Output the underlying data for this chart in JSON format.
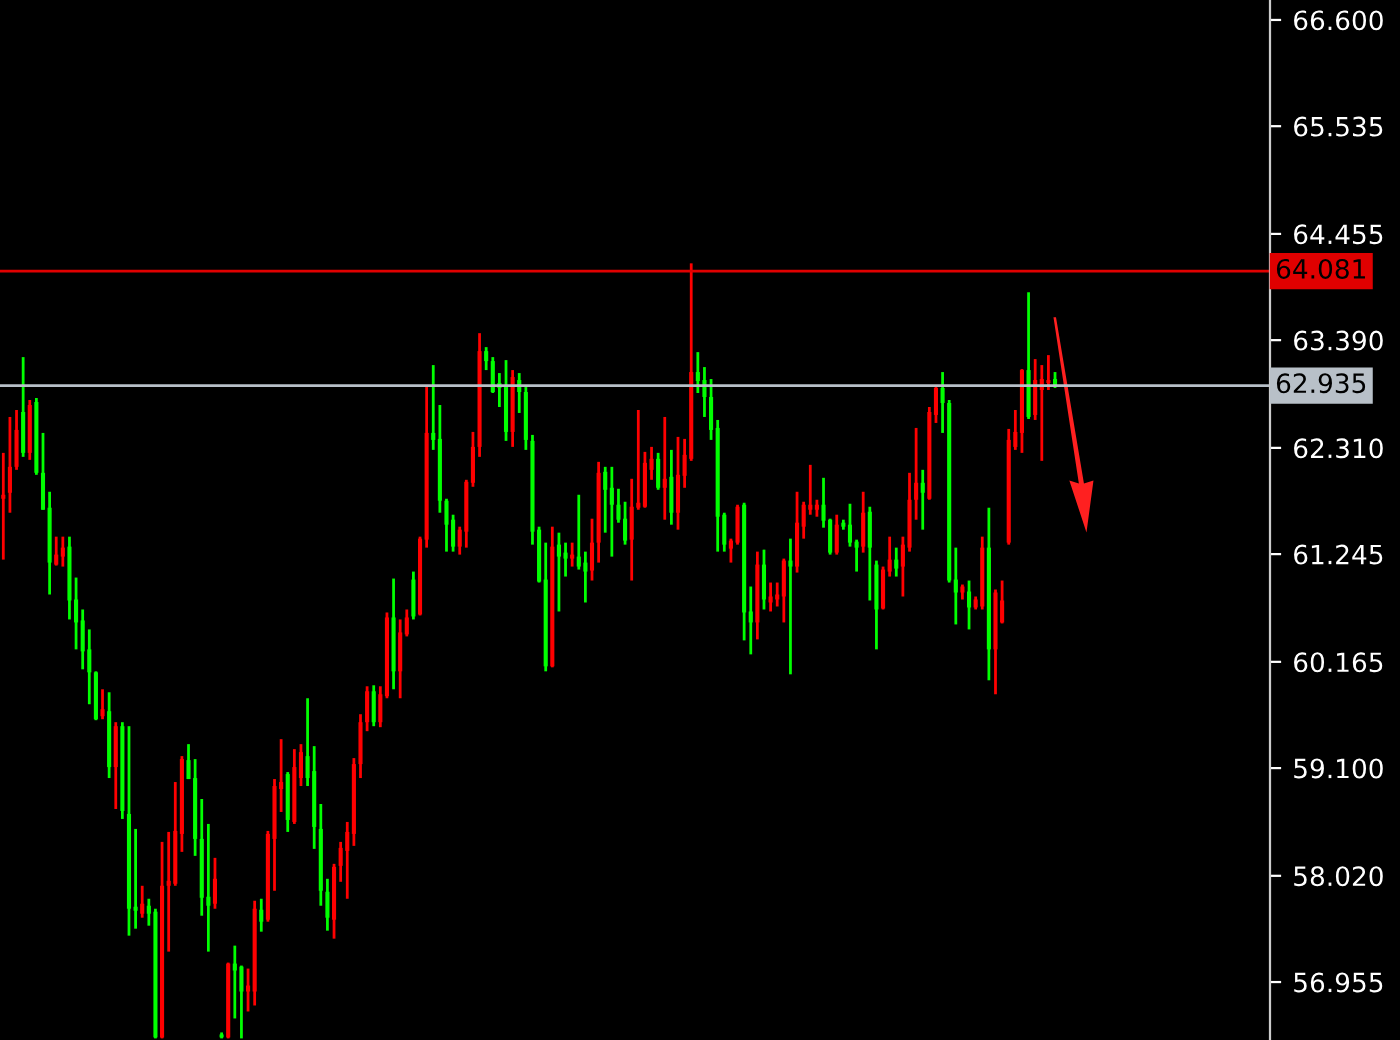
{
  "chart_data": {
    "type": "candlestick",
    "categories": [
      null,
      null,
      null,
      null,
      null,
      null,
      null,
      null,
      null,
      null,
      null,
      null,
      null,
      null,
      null,
      null,
      null,
      null,
      null,
      null,
      null,
      null,
      null,
      null,
      null,
      null,
      null,
      null,
      null,
      null,
      null,
      null,
      null,
      null,
      null,
      null,
      null,
      null,
      null,
      null,
      null,
      null,
      null,
      null,
      null,
      null,
      null,
      null,
      null,
      null,
      null,
      null,
      null,
      null,
      null,
      null,
      null,
      null,
      null,
      null,
      null,
      null,
      null,
      null,
      null,
      null,
      null,
      null,
      null,
      null,
      null,
      null,
      null,
      null,
      null,
      null,
      null,
      null,
      null,
      null,
      null,
      null,
      null,
      null,
      null,
      null,
      null,
      null,
      null,
      null,
      null,
      null,
      null,
      null,
      null,
      null,
      null,
      null,
      null,
      null,
      null,
      null,
      null,
      null,
      null,
      null,
      null,
      null,
      null,
      null,
      null,
      null,
      null,
      null,
      null,
      null,
      null,
      null,
      null,
      null,
      null,
      null,
      null,
      null,
      null,
      null,
      null,
      null,
      null,
      null,
      null,
      null,
      null,
      null,
      null,
      null,
      null,
      null,
      null,
      null,
      null,
      null,
      null,
      null,
      null,
      null,
      null,
      null,
      null,
      null,
      null,
      null,
      null,
      null,
      null,
      null,
      null,
      null,
      null,
      null,
      null,
      null,
      null,
      null,
      null,
      null,
      null,
      null,
      null,
      null,
      null,
      null,
      null,
      null,
      null,
      null,
      null,
      null,
      null,
      null,
      null,
      null,
      null,
      null,
      null,
      null,
      null,
      null,
      null,
      null,
      null,
      null
    ],
    "ohlc": [
      [
        61.8,
        62.26,
        61.19,
        61.84
      ],
      [
        61.86,
        62.62,
        61.66,
        62.12
      ],
      [
        62.12,
        62.69,
        62.09,
        62.49
      ],
      [
        62.67,
        63.22,
        62.22,
        62.26
      ],
      [
        62.26,
        62.79,
        62.19,
        62.74
      ],
      [
        62.77,
        62.81,
        62.04,
        62.06
      ],
      [
        62.06,
        62.46,
        61.69,
        61.69
      ],
      [
        61.71,
        61.87,
        60.84,
        61.16
      ],
      [
        61.14,
        61.42,
        61.13,
        61.24
      ],
      [
        61.22,
        61.42,
        61.12,
        61.31
      ],
      [
        61.32,
        61.42,
        60.59,
        60.78
      ],
      [
        60.79,
        61.01,
        60.29,
        60.56
      ],
      [
        60.58,
        60.69,
        60.09,
        60.27
      ],
      [
        60.29,
        60.49,
        59.74,
        60.06
      ],
      [
        60.06,
        60.07,
        59.58,
        59.59
      ],
      [
        59.62,
        59.89,
        59.59,
        59.69
      ],
      [
        59.67,
        59.86,
        59.0,
        59.11
      ],
      [
        59.11,
        59.56,
        58.69,
        59.52
      ],
      [
        59.52,
        59.56,
        58.59,
        58.67
      ],
      [
        58.64,
        59.52,
        57.42,
        57.69
      ],
      [
        57.71,
        58.49,
        57.49,
        57.67
      ],
      [
        57.64,
        57.92,
        57.6,
        57.74
      ],
      [
        57.72,
        57.79,
        57.52,
        57.64
      ],
      [
        57.66,
        57.69,
        56.39,
        56.4
      ],
      [
        56.4,
        58.36,
        56.39,
        57.92
      ],
      [
        57.92,
        58.46,
        57.26,
        57.97
      ],
      [
        57.94,
        58.96,
        57.92,
        58.47
      ],
      [
        58.44,
        59.22,
        58.26,
        59.19
      ],
      [
        59.18,
        59.34,
        58.99,
        58.99
      ],
      [
        59.0,
        59.19,
        58.22,
        58.39
      ],
      [
        58.39,
        58.79,
        57.62,
        57.8
      ],
      [
        57.81,
        58.54,
        57.26,
        57.72
      ],
      [
        57.74,
        58.2,
        57.69,
        57.99
      ],
      [
        56.43,
        56.45,
        56.39,
        56.4
      ],
      [
        56.4,
        57.15,
        56.39,
        57.14
      ],
      [
        57.14,
        57.32,
        56.59,
        57.07
      ],
      [
        57.11,
        57.12,
        56.39,
        56.86
      ],
      [
        56.86,
        57.09,
        56.66,
        56.92
      ],
      [
        56.86,
        57.77,
        56.72,
        57.69
      ],
      [
        57.68,
        57.79,
        57.46,
        57.56
      ],
      [
        57.58,
        58.47,
        57.56,
        58.44
      ],
      [
        58.39,
        58.99,
        57.87,
        58.92
      ],
      [
        58.89,
        59.39,
        58.66,
        58.96
      ],
      [
        59.04,
        59.06,
        58.46,
        58.58
      ],
      [
        58.56,
        59.29,
        58.54,
        59.11
      ],
      [
        59.0,
        59.34,
        58.92,
        59.26
      ],
      [
        59.22,
        59.8,
        58.92,
        59.0
      ],
      [
        59.07,
        59.32,
        58.29,
        58.51
      ],
      [
        58.49,
        58.74,
        57.72,
        57.87
      ],
      [
        57.86,
        57.99,
        57.47,
        57.6
      ],
      [
        57.58,
        58.14,
        57.39,
        58.11
      ],
      [
        58.12,
        58.36,
        57.96,
        58.3
      ],
      [
        58.27,
        58.56,
        57.79,
        58.46
      ],
      [
        58.44,
        59.2,
        58.32,
        59.14
      ],
      [
        59.14,
        59.64,
        59.0,
        59.56
      ],
      [
        59.56,
        59.92,
        59.47,
        59.87
      ],
      [
        59.87,
        59.93,
        59.52,
        59.56
      ],
      [
        59.56,
        59.92,
        59.51,
        59.84
      ],
      [
        59.82,
        60.66,
        59.8,
        60.61
      ],
      [
        60.61,
        61.0,
        59.89,
        60.07
      ],
      [
        60.07,
        60.59,
        59.8,
        60.46
      ],
      [
        60.44,
        60.69,
        60.42,
        60.61
      ],
      [
        60.99,
        61.07,
        60.59,
        60.62
      ],
      [
        60.64,
        61.42,
        60.63,
        61.4
      ],
      [
        61.39,
        62.92,
        61.31,
        62.46
      ],
      [
        62.46,
        63.14,
        62.29,
        62.39
      ],
      [
        62.4,
        62.74,
        61.66,
        61.78
      ],
      [
        61.78,
        61.8,
        61.27,
        61.54
      ],
      [
        61.59,
        61.64,
        61.27,
        61.32
      ],
      [
        61.32,
        61.52,
        61.24,
        61.49
      ],
      [
        61.47,
        61.99,
        61.31,
        61.97
      ],
      [
        61.96,
        62.47,
        61.92,
        62.32
      ],
      [
        62.32,
        63.46,
        62.22,
        63.28
      ],
      [
        63.28,
        63.32,
        63.09,
        63.18
      ],
      [
        63.18,
        63.22,
        62.86,
        62.87
      ],
      [
        62.96,
        63.06,
        62.72,
        62.91
      ],
      [
        62.92,
        63.19,
        62.38,
        62.47
      ],
      [
        62.47,
        63.09,
        62.32,
        63.02
      ],
      [
        62.99,
        63.06,
        62.66,
        62.87
      ],
      [
        62.87,
        62.92,
        62.29,
        62.39
      ],
      [
        62.38,
        62.44,
        61.34,
        61.47
      ],
      [
        61.49,
        61.52,
        60.96,
        60.97
      ],
      [
        60.99,
        61.36,
        60.07,
        60.12
      ],
      [
        60.12,
        61.52,
        60.11,
        61.32
      ],
      [
        61.34,
        61.46,
        60.67,
        61.22
      ],
      [
        61.26,
        61.36,
        61.02,
        61.2
      ],
      [
        61.2,
        61.36,
        61.12,
        61.24
      ],
      [
        61.22,
        61.84,
        61.09,
        61.12
      ],
      [
        61.16,
        61.27,
        60.76,
        61.07
      ],
      [
        61.08,
        61.6,
        60.98,
        61.36
      ],
      [
        61.36,
        62.17,
        61.16,
        62.06
      ],
      [
        62.07,
        62.12,
        61.46,
        61.89
      ],
      [
        61.91,
        62.12,
        61.22,
        61.74
      ],
      [
        61.74,
        61.9,
        61.56,
        61.59
      ],
      [
        61.6,
        61.77,
        61.34,
        61.38
      ],
      [
        61.39,
        62.0,
        60.98,
        61.72
      ],
      [
        61.71,
        62.69,
        61.69,
        61.76
      ],
      [
        61.72,
        62.27,
        61.71,
        62.16
      ],
      [
        62.09,
        62.32,
        61.99,
        62.2
      ],
      [
        62.2,
        62.26,
        61.89,
        61.91
      ],
      [
        61.91,
        62.62,
        61.59,
        62.0
      ],
      [
        62.02,
        62.29,
        61.54,
        61.66
      ],
      [
        61.66,
        62.42,
        61.49,
        62.04
      ],
      [
        62.03,
        62.4,
        61.91,
        62.24
      ],
      [
        62.2,
        64.16,
        62.18,
        63.07
      ],
      [
        63.07,
        63.27,
        62.86,
        62.98
      ],
      [
        62.99,
        63.12,
        62.62,
        62.82
      ],
      [
        62.82,
        63.0,
        62.39,
        62.49
      ],
      [
        62.51,
        62.59,
        61.27,
        61.62
      ],
      [
        61.64,
        61.66,
        61.27,
        61.34
      ],
      [
        61.3,
        61.4,
        61.16,
        61.38
      ],
      [
        61.36,
        61.74,
        61.34,
        61.72
      ],
      [
        61.74,
        61.76,
        60.38,
        60.66
      ],
      [
        60.67,
        60.92,
        60.24,
        60.56
      ],
      [
        60.56,
        61.27,
        60.39,
        61.14
      ],
      [
        61.14,
        61.29,
        60.69,
        60.79
      ],
      [
        60.76,
        60.96,
        60.67,
        60.82
      ],
      [
        60.79,
        60.96,
        60.72,
        60.84
      ],
      [
        60.82,
        61.2,
        60.56,
        61.18
      ],
      [
        61.18,
        61.4,
        60.04,
        61.12
      ],
      [
        61.12,
        61.87,
        61.06,
        61.56
      ],
      [
        61.52,
        61.77,
        61.4,
        61.74
      ],
      [
        61.69,
        62.14,
        61.64,
        61.74
      ],
      [
        61.69,
        61.79,
        61.62,
        61.74
      ],
      [
        61.74,
        62.01,
        61.51,
        61.58
      ],
      [
        61.59,
        61.6,
        61.24,
        61.26
      ],
      [
        61.26,
        61.64,
        61.24,
        61.54
      ],
      [
        61.56,
        61.59,
        61.49,
        61.52
      ],
      [
        61.54,
        61.75,
        61.32,
        61.36
      ],
      [
        61.37,
        61.39,
        61.07,
        61.31
      ],
      [
        61.32,
        61.87,
        61.26,
        61.66
      ],
      [
        61.67,
        61.72,
        60.78,
        61.31
      ],
      [
        61.14,
        61.18,
        60.29,
        60.69
      ],
      [
        60.7,
        61.12,
        60.69,
        61.09
      ],
      [
        61.07,
        61.42,
        61.02,
        61.19
      ],
      [
        61.19,
        61.31,
        61.02,
        61.1
      ],
      [
        61.12,
        61.42,
        60.82,
        61.34
      ],
      [
        61.31,
        62.06,
        61.27,
        61.79
      ],
      [
        61.79,
        62.51,
        61.59,
        61.96
      ],
      [
        61.96,
        62.09,
        61.49,
        61.86
      ],
      [
        61.8,
        62.72,
        61.79,
        62.67
      ],
      [
        62.64,
        62.94,
        62.56,
        62.91
      ],
      [
        62.91,
        63.07,
        62.46,
        62.76
      ],
      [
        62.76,
        62.79,
        60.96,
        60.98
      ],
      [
        60.99,
        61.31,
        60.54,
        60.86
      ],
      [
        60.86,
        60.94,
        60.79,
        60.92
      ],
      [
        60.87,
        60.98,
        60.49,
        60.71
      ],
      [
        60.71,
        60.82,
        60.69,
        60.79
      ],
      [
        60.72,
        61.42,
        60.69,
        61.31
      ],
      [
        61.31,
        61.71,
        59.98,
        60.29
      ],
      [
        60.29,
        60.89,
        59.84,
        60.86
      ],
      [
        60.56,
        60.98,
        60.55,
        60.78
      ],
      [
        61.36,
        62.5,
        61.34,
        62.39
      ],
      [
        62.32,
        62.69,
        62.29,
        62.47
      ],
      [
        62.46,
        63.1,
        62.26,
        63.09
      ],
      [
        63.09,
        63.87,
        62.6,
        62.62
      ],
      [
        62.64,
        63.2,
        62.59,
        62.99
      ],
      [
        62.89,
        63.14,
        62.18,
        63.0
      ],
      [
        62.96,
        63.24,
        62.89,
        62.99
      ],
      [
        63.0,
        63.07,
        62.91,
        62.94
      ],
      null,
      null,
      null,
      null,
      null,
      null,
      null,
      null,
      null,
      null,
      null,
      null,
      null,
      null,
      null,
      null,
      null,
      null,
      null,
      null,
      null,
      null,
      null,
      null,
      null,
      null,
      null,
      null,
      null,
      null,
      null,
      null
    ],
    "colors": [
      "#ff0000",
      "#ff0000",
      "#ff0000",
      "#00ff00",
      "#ff0000",
      "#00ff00",
      "#00ff00",
      "#00ff00",
      "#ff0000",
      "#ff0000",
      "#00ff00",
      "#00ff00",
      "#00ff00",
      "#00ff00",
      "#00ff00",
      "#ff0000",
      "#00ff00",
      "#ff0000",
      "#00ff00",
      "#00ff00",
      "#00ff00",
      "#ff0000",
      "#00ff00",
      "#00ff00",
      "#ff0000",
      "#ff0000",
      "#ff0000",
      "#ff0000",
      "#00ff00",
      "#00ff00",
      "#00ff00",
      "#00ff00",
      "#ff0000",
      "#00ff00",
      "#ff0000",
      "#00ff00",
      "#00ff00",
      "#ff0000",
      "#ff0000",
      "#00ff00",
      "#ff0000",
      "#ff0000",
      "#ff0000",
      "#00ff00",
      "#ff0000",
      "#ff0000",
      "#00ff00",
      "#00ff00",
      "#00ff00",
      "#00ff00",
      "#ff0000",
      "#ff0000",
      "#ff0000",
      "#ff0000",
      "#ff0000",
      "#ff0000",
      "#00ff00",
      "#ff0000",
      "#ff0000",
      "#00ff00",
      "#ff0000",
      "#ff0000",
      "#00ff00",
      "#ff0000",
      "#ff0000",
      "#00ff00",
      "#00ff00",
      "#00ff00",
      "#00ff00",
      "#ff0000",
      "#ff0000",
      "#ff0000",
      "#ff0000",
      "#00ff00",
      "#00ff00",
      "#00ff00",
      "#00ff00",
      "#ff0000",
      "#00ff00",
      "#00ff00",
      "#00ff00",
      "#00ff00",
      "#00ff00",
      "#ff0000",
      "#00ff00",
      "#00ff00",
      "#ff0000",
      "#00ff00",
      "#00ff00",
      "#ff0000",
      "#ff0000",
      "#00ff00",
      "#00ff00",
      "#00ff00",
      "#00ff00",
      "#ff0000",
      "#ff0000",
      "#ff0000",
      "#ff0000",
      "#00ff00",
      "#ff0000",
      "#00ff00",
      "#ff0000",
      "#ff0000",
      "#ff0000",
      "#00ff00",
      "#00ff00",
      "#00ff00",
      "#00ff00",
      "#00ff00",
      "#ff0000",
      "#ff0000",
      "#00ff00",
      "#00ff00",
      "#ff0000",
      "#00ff00",
      "#ff0000",
      "#ff0000",
      "#ff0000",
      "#00ff00",
      "#ff0000",
      "#ff0000",
      "#ff0000",
      "#ff0000",
      "#00ff00",
      "#00ff00",
      "#ff0000",
      "#00ff00",
      "#00ff00",
      "#00ff00",
      "#ff0000",
      "#00ff00",
      "#00ff00",
      "#ff0000",
      "#ff0000",
      "#00ff00",
      "#ff0000",
      "#ff0000",
      "#ff0000",
      "#00ff00",
      "#ff0000",
      "#ff0000",
      "#00ff00",
      "#00ff00",
      "#00ff00",
      "#ff0000",
      "#00ff00",
      "#ff0000",
      "#ff0000",
      "#00ff00",
      "#ff0000",
      "#ff0000",
      "#ff0000",
      "#ff0000",
      "#ff0000",
      "#00ff00",
      "#ff0000",
      "#ff0000",
      "#ff0000",
      "#00ff00",
      null,
      null,
      null,
      null,
      null,
      null,
      null,
      null,
      null,
      null,
      null,
      null,
      null,
      null,
      null,
      null,
      null,
      null,
      null,
      null,
      null,
      null,
      null,
      null,
      null,
      null,
      null,
      null,
      null,
      null,
      null,
      null
    ],
    "ylim": [
      56.374,
      66.8
    ],
    "yticks": [
      {
        "value": 66.6,
        "label": "66.600"
      },
      {
        "value": 65.535,
        "label": "65.535"
      },
      {
        "value": 64.455,
        "label": "64.455"
      },
      {
        "value": 63.39,
        "label": "63.390"
      },
      {
        "value": 62.31,
        "label": "62.310"
      },
      {
        "value": 61.245,
        "label": "61.245"
      },
      {
        "value": 60.165,
        "label": "60.165"
      },
      {
        "value": 59.1,
        "label": "59.100"
      },
      {
        "value": 58.02,
        "label": "58.020"
      },
      {
        "value": 56.955,
        "label": "56.955"
      }
    ],
    "ref_lines": [
      {
        "axis": "y",
        "value": 64.081,
        "label": "64.081",
        "color": "#e00000"
      },
      {
        "axis": "y",
        "value": 62.935,
        "label": "62.935",
        "color": "#b8c0c8"
      }
    ],
    "tick_labels": "y",
    "grid": false
  }
}
